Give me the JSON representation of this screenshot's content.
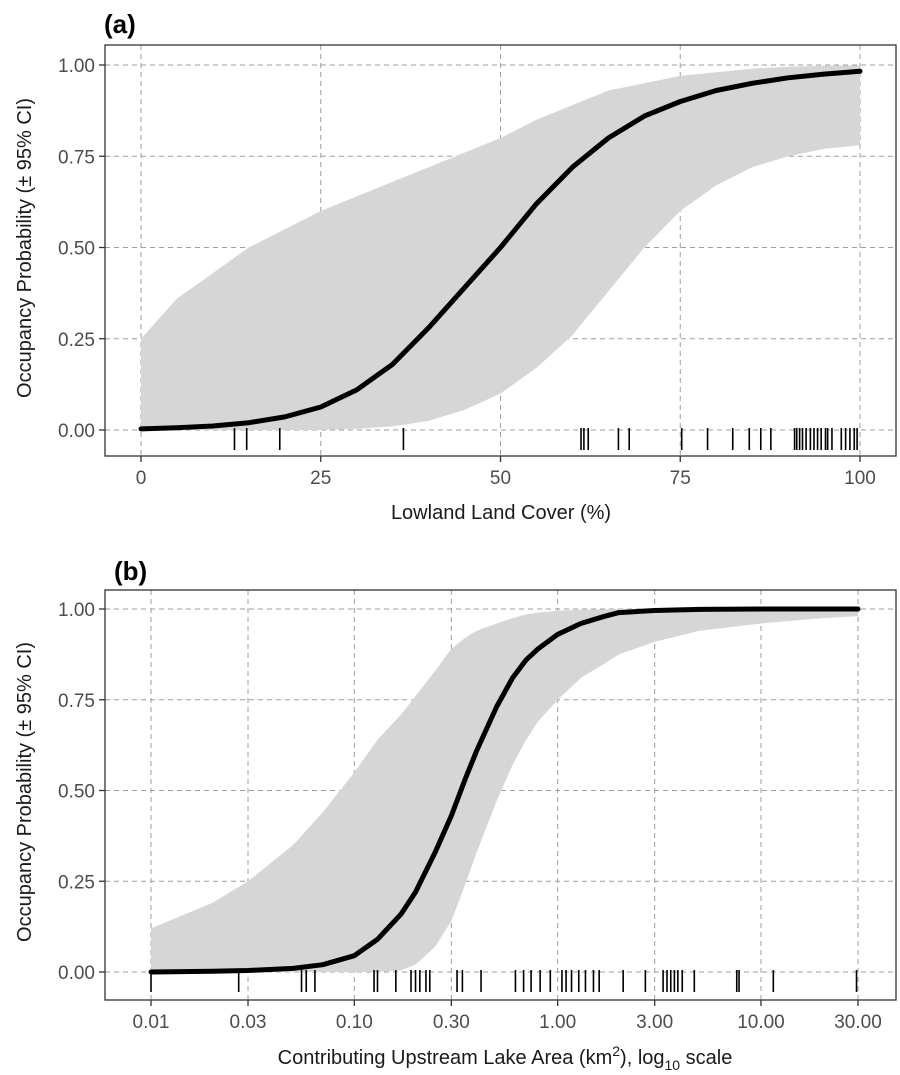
{
  "chart_data": [
    {
      "type": "line",
      "panel_label": "(a)",
      "xlabel": "Lowland Land Cover (%)",
      "ylabel": "Occupancy Probability (± 95% CI)",
      "xscale": "linear",
      "xlim": [
        0,
        100
      ],
      "ylim": [
        0,
        1
      ],
      "grid": true,
      "x_ticks": [
        0,
        25,
        50,
        75,
        100
      ],
      "x_tick_labels": [
        "0",
        "25",
        "50",
        "75",
        "100"
      ],
      "y_ticks": [
        0,
        0.25,
        0.5,
        0.75,
        1
      ],
      "y_tick_labels": [
        "0.00",
        "0.25",
        "0.50",
        "0.75",
        "1.00"
      ],
      "series": [
        {
          "x": [
            0,
            5,
            10,
            15,
            20,
            25,
            30,
            35,
            40,
            45,
            50,
            55,
            60,
            65,
            70,
            75,
            80,
            85,
            90,
            95,
            100
          ],
          "y": [
            0.003,
            0.006,
            0.011,
            0.02,
            0.036,
            0.063,
            0.11,
            0.18,
            0.28,
            0.39,
            0.5,
            0.62,
            0.72,
            0.8,
            0.86,
            0.9,
            0.93,
            0.95,
            0.965,
            0.975,
            0.983
          ],
          "lower": [
            0,
            0,
            0,
            0,
            0,
            0,
            0.003,
            0.01,
            0.025,
            0.055,
            0.1,
            0.17,
            0.26,
            0.38,
            0.5,
            0.6,
            0.67,
            0.72,
            0.75,
            0.77,
            0.78
          ],
          "upper": [
            0.25,
            0.36,
            0.43,
            0.5,
            0.55,
            0.6,
            0.64,
            0.68,
            0.72,
            0.76,
            0.8,
            0.85,
            0.89,
            0.93,
            0.95,
            0.97,
            0.98,
            0.99,
            0.995,
            0.998,
            0.999
          ]
        }
      ],
      "rug": [
        13,
        14.7,
        19.3,
        36.5,
        61.2,
        61.6,
        62.2,
        66.4,
        67.9,
        75.2,
        78.8,
        82.3,
        84.6,
        86.2,
        87.6,
        90.9,
        91.2,
        91.6,
        92.0,
        92.5,
        93.1,
        93.6,
        94.1,
        94.6,
        95.2,
        95.5,
        96.1,
        97.4,
        98.0,
        98.6,
        99.2,
        99.6
      ]
    },
    {
      "type": "line",
      "panel_label": "(b)",
      "xlabel": "Contributing Upstream Lake Area (km²), log₁₀ scale",
      "ylabel": "Occupancy Probability (± 95% CI)",
      "xscale": "log10",
      "xlim": [
        0.01,
        30
      ],
      "ylim": [
        0,
        1
      ],
      "grid": true,
      "x_ticks": [
        0.01,
        0.03,
        0.1,
        0.3,
        1,
        3,
        10,
        30
      ],
      "x_tick_labels": [
        "0.01",
        "0.03",
        "0.10",
        "0.30",
        "1.00",
        "3.00",
        "10.00",
        "30.00"
      ],
      "y_ticks": [
        0,
        0.25,
        0.5,
        0.75,
        1
      ],
      "y_tick_labels": [
        "0.00",
        "0.25",
        "0.50",
        "0.75",
        "1.00"
      ],
      "series": [
        {
          "x": [
            0.01,
            0.02,
            0.03,
            0.05,
            0.07,
            0.1,
            0.13,
            0.17,
            0.2,
            0.25,
            0.3,
            0.35,
            0.4,
            0.5,
            0.6,
            0.7,
            0.8,
            1.0,
            1.3,
            1.7,
            2.0,
            3.0,
            5.0,
            10.0,
            20.0,
            30.0
          ],
          "y": [
            0.0,
            0.002,
            0.004,
            0.01,
            0.02,
            0.045,
            0.09,
            0.16,
            0.22,
            0.33,
            0.43,
            0.53,
            0.61,
            0.73,
            0.81,
            0.86,
            0.89,
            0.93,
            0.96,
            0.98,
            0.99,
            0.996,
            0.999,
            1.0,
            1.0,
            1.0
          ],
          "lower": [
            0,
            0,
            0,
            0,
            0,
            0,
            0,
            0.005,
            0.02,
            0.07,
            0.14,
            0.24,
            0.33,
            0.47,
            0.57,
            0.64,
            0.69,
            0.75,
            0.81,
            0.85,
            0.875,
            0.91,
            0.94,
            0.96,
            0.975,
            0.98
          ],
          "upper": [
            0.12,
            0.19,
            0.25,
            0.35,
            0.44,
            0.55,
            0.64,
            0.71,
            0.76,
            0.83,
            0.89,
            0.92,
            0.94,
            0.96,
            0.975,
            0.985,
            0.99,
            0.995,
            0.998,
            0.999,
            1.0,
            1.0,
            1.0,
            1.0,
            1.0,
            1.0
          ]
        }
      ],
      "rug": [
        0.01,
        0.027,
        0.055,
        0.058,
        0.064,
        0.125,
        0.13,
        0.16,
        0.19,
        0.2,
        0.21,
        0.225,
        0.235,
        0.32,
        0.34,
        0.42,
        0.62,
        0.68,
        0.74,
        0.82,
        0.92,
        1.05,
        1.1,
        1.17,
        1.27,
        1.37,
        1.5,
        1.6,
        2.1,
        2.7,
        3.3,
        3.45,
        3.6,
        3.75,
        3.9,
        4.1,
        4.7,
        7.6,
        7.8,
        11.5,
        29.5
      ]
    }
  ]
}
